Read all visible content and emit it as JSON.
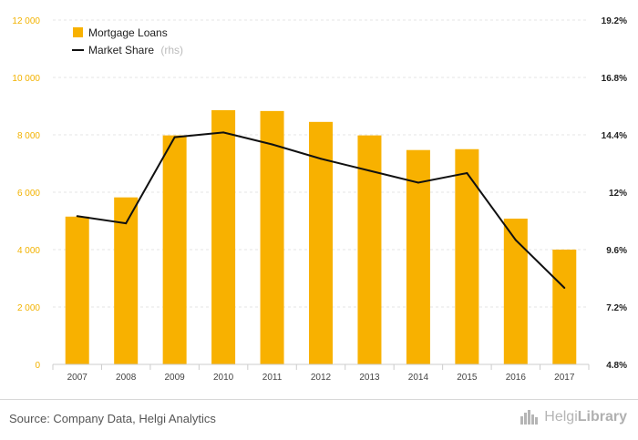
{
  "chart_data": {
    "type": "bar",
    "categories": [
      "2007",
      "2008",
      "2009",
      "2010",
      "2011",
      "2012",
      "2013",
      "2014",
      "2015",
      "2016",
      "2017"
    ],
    "series": [
      {
        "name": "Mortgage Loans",
        "type": "bar",
        "axis": "left",
        "color": "#f8b100",
        "values": [
          5150,
          5820,
          7980,
          8860,
          8830,
          8450,
          7980,
          7470,
          7500,
          5080,
          4000
        ]
      },
      {
        "name": "Market Share",
        "name_suffix": "(rhs)",
        "type": "line",
        "axis": "right",
        "color": "#111111",
        "values": [
          11.0,
          10.7,
          14.3,
          14.5,
          14.0,
          13.4,
          12.9,
          12.4,
          12.8,
          10.0,
          8.0
        ]
      }
    ],
    "y_left": {
      "range": [
        0,
        12000
      ],
      "ticks": [
        "0",
        "2 000",
        "4 000",
        "6 000",
        "8 000",
        "10 000",
        "12 000"
      ]
    },
    "y_right": {
      "range": [
        4.8,
        19.2
      ],
      "ticks": [
        "4.8%",
        "7.2%",
        "9.6%",
        "12%",
        "14.4%",
        "16.8%",
        "19.2%"
      ]
    },
    "grid": true,
    "legend_position": "top-left"
  },
  "footer": {
    "source": "Source: Company Data, Helgi Analytics",
    "brand_light": "Helgi",
    "brand_bold": "Library"
  },
  "icons": {
    "brand": "city-skyline-icon"
  }
}
